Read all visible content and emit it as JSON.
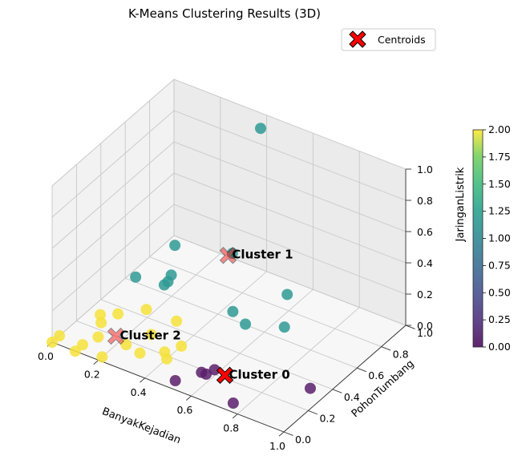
{
  "chart_data": {
    "type": "scatter",
    "projection": "3d",
    "title": "K-Means Clustering Results (3D)",
    "xlabel": "BanyakKejadian",
    "ylabel": "PohonTumbang",
    "zlabel": "JaringanListrik",
    "xlim": [
      0,
      1
    ],
    "ylim": [
      0,
      1
    ],
    "zlim": [
      0,
      1
    ],
    "x_ticks": [
      "0.0",
      "0.2",
      "0.4",
      "0.6",
      "0.8",
      "1.0"
    ],
    "y_ticks": [
      "0.0",
      "0.2",
      "0.4",
      "0.6",
      "0.8",
      "1.0"
    ],
    "z_ticks": [
      "0.0",
      "0.2",
      "0.4",
      "0.6",
      "0.8",
      "1.0"
    ],
    "grid": true,
    "colormap": "viridis",
    "colorbar": {
      "range": [
        0,
        2
      ],
      "ticks": [
        "0.00",
        "0.25",
        "0.50",
        "0.75",
        "1.00",
        "1.25",
        "1.50",
        "1.75",
        "2.00"
      ]
    },
    "legend": {
      "placement": "top-right",
      "entries": [
        "Centroids"
      ]
    },
    "cluster_colors": {
      "0": "#5b1f6b",
      "1": "#2f9a94",
      "2": "#f6e23a"
    },
    "centroid_color": "#ff0000",
    "series": [
      {
        "cluster": 0,
        "points": [
          [
            0.57,
            0.18,
            0.0
          ],
          [
            0.55,
            0.18,
            0.0
          ],
          [
            0.5,
            0.06,
            0.0
          ],
          [
            0.58,
            0.23,
            0.0
          ],
          [
            0.93,
            0.35,
            0.0
          ],
          [
            0.75,
            0.06,
            0.0
          ]
        ]
      },
      {
        "cluster": 1,
        "points": [
          [
            0.33,
            0.38,
            0.55
          ],
          [
            0.62,
            0.75,
            0.15
          ],
          [
            0.65,
            0.35,
            0.25
          ],
          [
            0.75,
            0.48,
            0.2
          ],
          [
            0.4,
            0.95,
            0.95
          ],
          [
            0.62,
            0.3,
            0.72
          ],
          [
            0.33,
            0.35,
            0.38
          ],
          [
            0.3,
            0.38,
            0.3
          ],
          [
            0.3,
            0.35,
            0.3
          ],
          [
            0.15,
            0.4,
            0.23
          ],
          [
            0.58,
            0.38,
            0.27
          ]
        ]
      },
      {
        "cluster": 2,
        "points": [
          [
            0.0,
            0.06,
            0.0
          ],
          [
            0.1,
            0.06,
            0.0
          ],
          [
            0.12,
            0.15,
            0.0
          ],
          [
            0.1,
            0.0,
            0.0
          ],
          [
            0.2,
            0.03,
            0.0
          ],
          [
            0.27,
            0.3,
            0.0
          ],
          [
            0.3,
            0.15,
            0.0
          ],
          [
            0.1,
            0.35,
            0.0
          ],
          [
            0.05,
            0.3,
            0.0
          ],
          [
            0.08,
            0.25,
            0.0
          ],
          [
            0.23,
            0.17,
            0.0
          ],
          [
            0.37,
            0.22,
            0.0
          ],
          [
            0.4,
            0.3,
            0.0
          ],
          [
            0.4,
            0.18,
            0.0
          ],
          [
            0.17,
            0.45,
            0.0
          ],
          [
            0.3,
            0.45,
            0.0
          ],
          [
            0.0,
            0.0,
            0.0
          ]
        ]
      }
    ],
    "centroids": [
      {
        "label": "Cluster 0",
        "point": [
          0.63,
          0.22,
          0.0
        ]
      },
      {
        "label": "Cluster 1",
        "point": [
          0.47,
          0.55,
          0.45
        ]
      },
      {
        "label": "Cluster 2",
        "point": [
          0.17,
          0.2,
          0.0
        ]
      }
    ]
  }
}
